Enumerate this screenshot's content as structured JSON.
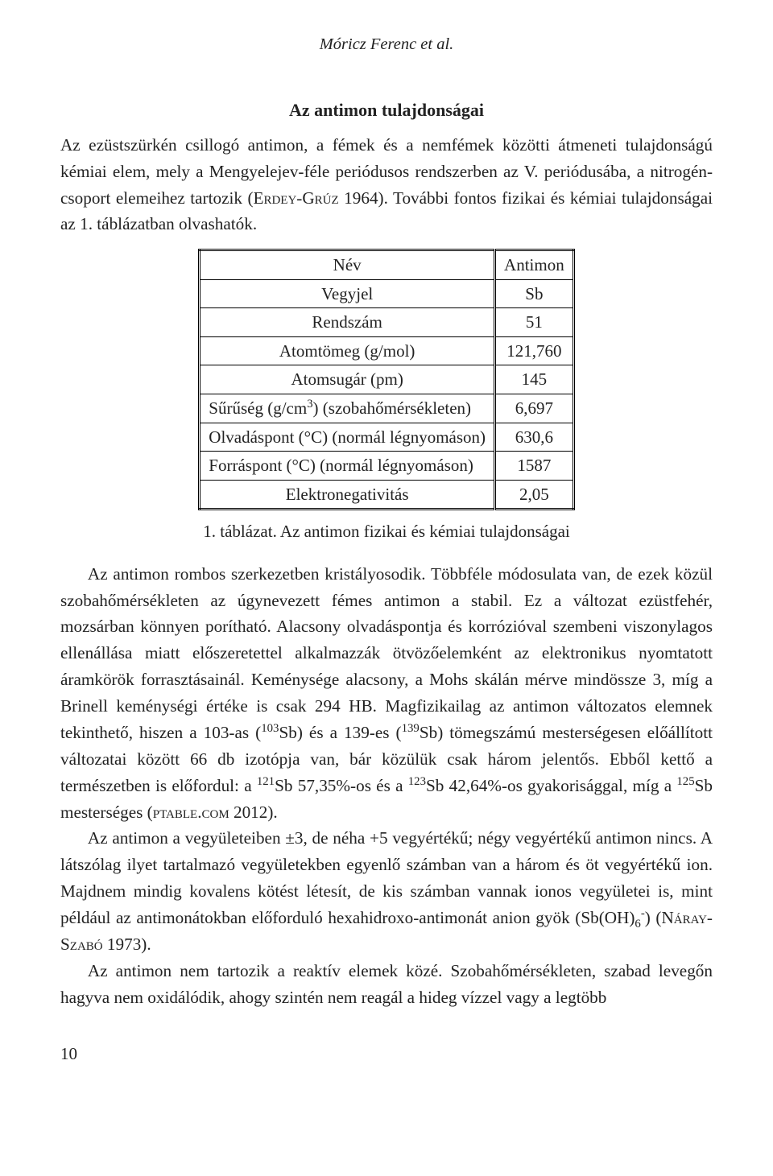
{
  "running_head": "Móricz Ferenc et al.",
  "section_title": "Az antimon tulajdonságai",
  "para1_html": "Az ezüstszürkén csillogó antimon, a fémek és a nemfémek közötti átmeneti tulajdonságú kémiai elem, mely a Mengyelejev-féle periódusos rendszerben az V. periódusába, a nitrogén-csoport elemeihez tartozik (<span class=\"sc\">Erdey-Grúz</span> 1964). További fontos fizikai és kémiai tulajdonságai az 1. táblázatban olvashatók.",
  "table": {
    "rows": [
      [
        "Név",
        "Antimon"
      ],
      [
        "Vegyjel",
        "Sb"
      ],
      [
        "Rendszám",
        "51"
      ],
      [
        "Atomtömeg (g/mol)",
        "121,760"
      ],
      [
        "Atomsugár (pm)",
        "145"
      ],
      [
        "Sűrűség (g/cm<sup class=\"s\">3</sup>) (szobahőmérsékleten)",
        "6,697"
      ],
      [
        "Olvadáspont (°C) (normál légnyomáson)",
        "630,6"
      ],
      [
        "Forráspont (°C) (normál légnyomáson)",
        "1587"
      ],
      [
        "Elektronegativitás",
        "2,05"
      ]
    ],
    "left_align_rows": [
      5,
      6,
      7
    ]
  },
  "caption": "1. táblázat. Az antimon fizikai és kémiai tulajdonságai",
  "para2_html": "Az antimon rombos szerkezetben kristályosodik. Többféle módosulata van, de ezek közül szobahőmérsékleten az úgynevezett fémes antimon a stabil. Ez a változat ezüstfehér, mozsárban könnyen porítható. Alacsony olvadáspontja és korrózióval szembeni viszonylagos ellenállása miatt előszeretettel alkalmazzák ötvözőelemként az elektronikus nyomtatott áramkörök forrasztásainál. Keménysége alacsony, a Mohs skálán mérve mindössze 3, míg a Brinell keménységi értéke is csak 294 HB. Magfizikailag az antimon változatos elemnek tekinthető, hiszen a 103-as (<sup class=\"s\">103</sup>Sb) és a 139-es (<sup class=\"s\">139</sup>Sb) tömegszámú mesterségesen előállított változatai között 66 db izotópja van, bár közülük csak három jelentős. Ebből kettő a természetben is előfordul: a <sup class=\"s\">121</sup>Sb 57,35%-os és a <sup class=\"s\">123</sup>Sb 42,64%-os gyakorisággal, míg a <sup class=\"s\">125</sup>Sb mesterséges (<span class=\"sc\">ptable.com</span> 2012).",
  "para3_html": "Az antimon a vegyületeiben ±3, de néha +5 vegyértékű; négy vegyértékű antimon nincs. A látszólag ilyet tartalmazó vegyületekben egyenlő számban van a három és öt vegyértékű ion. Majdnem mindig kovalens kötést létesít, de kis számban vannak ionos vegyületei is, mint például az antimonátokban előforduló hexahidroxo-antimonát anion gyök (Sb(OH)<sub class=\"s\">6</sub><sup class=\"s\">-</sup>) (<span class=\"sc\">Náray-Szabó</span> 1973).",
  "para4_html": "Az antimon nem tartozik a reaktív elemek közé. Szobahőmérsékleten, szabad levegőn hagyva nem oxidálódik, ahogy szintén nem reagál a hideg vízzel vagy a legtöbb",
  "page_number": "10"
}
